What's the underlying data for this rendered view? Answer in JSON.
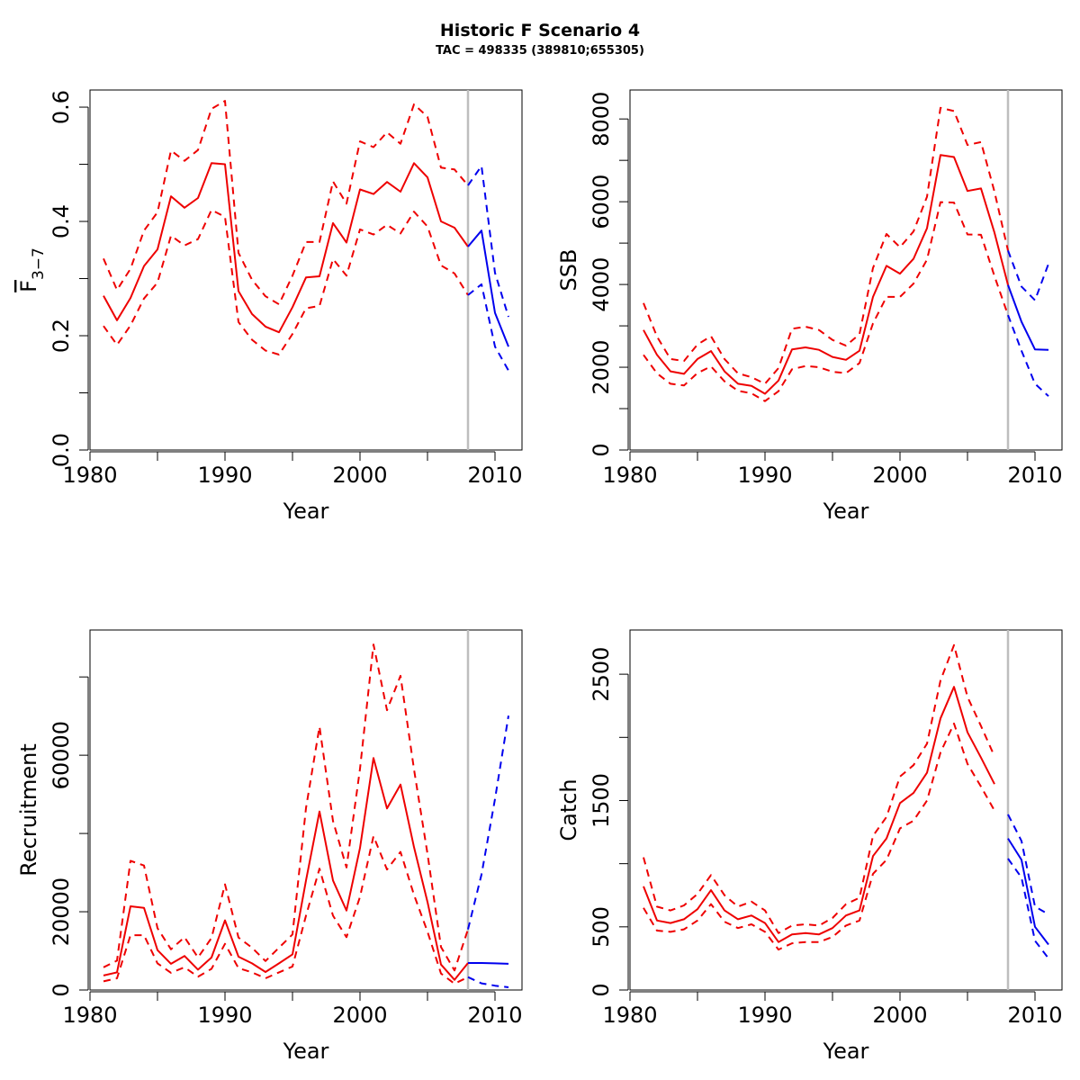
{
  "figure": {
    "title": "Historic F Scenario 4",
    "subtitle": "TAC = 498335 (389810;655305)"
  },
  "colors": {
    "historic": "#ee0000",
    "forecast": "#0000ee",
    "divider": "#bebebe"
  },
  "chart_data": [
    {
      "type": "line",
      "panel": "top-left",
      "xlabel": "Year",
      "ylabel_main": "F",
      "ylabel_sub": "3−7",
      "xlim": [
        1980,
        2012
      ],
      "ylim": [
        0,
        0.63
      ],
      "xticks": [
        1980,
        1990,
        2000,
        2010
      ],
      "yticks": [
        0.0,
        0.2,
        0.4,
        0.6
      ],
      "ytick_labels": [
        "0.0",
        "0.2",
        "0.4",
        "0.6"
      ],
      "ytick_minor": [
        0.1,
        0.3,
        0.5
      ],
      "divider_x": 2008,
      "historic": {
        "x": [
          1981,
          1982,
          1983,
          1984,
          1985,
          1986,
          1987,
          1988,
          1989,
          1990,
          1991,
          1992,
          1993,
          1994,
          1995,
          1996,
          1997,
          1998,
          1999,
          2000,
          2001,
          2002,
          2003,
          2004,
          2005,
          2006,
          2007,
          2008
        ],
        "mid": [
          0.27,
          0.227,
          0.266,
          0.322,
          0.351,
          0.444,
          0.424,
          0.441,
          0.502,
          0.5,
          0.278,
          0.238,
          0.216,
          0.206,
          0.25,
          0.302,
          0.304,
          0.397,
          0.363,
          0.456,
          0.448,
          0.469,
          0.452,
          0.502,
          0.477,
          0.4,
          0.389,
          0.356
        ],
        "upper": [
          0.335,
          0.28,
          0.317,
          0.384,
          0.416,
          0.524,
          0.506,
          0.525,
          0.597,
          0.611,
          0.345,
          0.298,
          0.269,
          0.255,
          0.305,
          0.364,
          0.364,
          0.47,
          0.431,
          0.54,
          0.53,
          0.556,
          0.536,
          0.605,
          0.583,
          0.494,
          0.491,
          0.463
        ],
        "lower": [
          0.217,
          0.184,
          0.218,
          0.265,
          0.293,
          0.375,
          0.358,
          0.369,
          0.42,
          0.408,
          0.224,
          0.193,
          0.174,
          0.167,
          0.203,
          0.248,
          0.252,
          0.334,
          0.305,
          0.386,
          0.377,
          0.394,
          0.379,
          0.417,
          0.391,
          0.323,
          0.309,
          0.271
        ]
      },
      "forecast": {
        "x": [
          2008,
          2009,
          2010,
          2011
        ],
        "mid": [
          0.356,
          0.384,
          0.24,
          0.181
        ],
        "upper": [
          0.463,
          0.497,
          0.31,
          0.233
        ],
        "lower": [
          0.271,
          0.29,
          0.181,
          0.139
        ]
      }
    },
    {
      "type": "line",
      "panel": "top-right",
      "xlabel": "Year",
      "ylabel": "SSB",
      "xlim": [
        1980,
        2012
      ],
      "ylim": [
        0,
        8700
      ],
      "xticks": [
        1980,
        1990,
        2000,
        2010
      ],
      "yticks": [
        0,
        2000,
        4000,
        6000,
        8000
      ],
      "ytick_labels": [
        "0",
        "2000",
        "4000",
        "6000",
        "8000"
      ],
      "ytick_minor": [
        1000,
        3000,
        5000,
        7000
      ],
      "divider_x": 2008,
      "historic": {
        "x": [
          1981,
          1982,
          1983,
          1984,
          1985,
          1986,
          1987,
          1988,
          1989,
          1990,
          1991,
          1992,
          1993,
          1994,
          1995,
          1996,
          1997,
          1998,
          1999,
          2000,
          2001,
          2002,
          2003,
          2004,
          2005,
          2006,
          2007,
          2008
        ],
        "mid": [
          2900,
          2300,
          1900,
          1840,
          2200,
          2390,
          1900,
          1600,
          1550,
          1360,
          1680,
          2430,
          2480,
          2420,
          2250,
          2180,
          2400,
          3700,
          4450,
          4260,
          4620,
          5360,
          7130,
          7080,
          6260,
          6320,
          5250,
          3990
        ],
        "upper": [
          3550,
          2740,
          2200,
          2150,
          2550,
          2750,
          2200,
          1850,
          1760,
          1600,
          1980,
          2930,
          2980,
          2900,
          2660,
          2520,
          2800,
          4400,
          5220,
          4900,
          5280,
          6120,
          8270,
          8190,
          7370,
          7440,
          6240,
          4820
        ],
        "lower": [
          2300,
          1850,
          1600,
          1560,
          1860,
          2020,
          1660,
          1430,
          1370,
          1180,
          1420,
          1950,
          2030,
          2000,
          1890,
          1860,
          2100,
          3060,
          3700,
          3700,
          4020,
          4600,
          5990,
          5980,
          5210,
          5200,
          4200,
          3260
        ]
      },
      "forecast": {
        "x": [
          2008,
          2009,
          2010,
          2011
        ],
        "mid": [
          3990,
          3100,
          2430,
          2420
        ],
        "upper": [
          4820,
          3950,
          3620,
          4500
        ],
        "lower": [
          3260,
          2400,
          1600,
          1300
        ]
      }
    },
    {
      "type": "line",
      "panel": "bottom-left",
      "xlabel": "Year",
      "ylabel": "Recruitment",
      "xlim": [
        1980,
        2012
      ],
      "ylim": [
        0,
        92000
      ],
      "xticks": [
        1980,
        1990,
        2000,
        2010
      ],
      "yticks": [
        0,
        20000,
        60000
      ],
      "ytick_labels": [
        "0",
        "20000",
        "60000"
      ],
      "ytick_minor": [
        40000,
        80000
      ],
      "divider_x": 2008,
      "historic": {
        "x": [
          1981,
          1982,
          1983,
          1984,
          1985,
          1986,
          1987,
          1988,
          1989,
          1990,
          1991,
          1992,
          1993,
          1994,
          1995,
          1996,
          1997,
          1998,
          1999,
          2000,
          2001,
          2002,
          2003,
          2004,
          2005,
          2006,
          2007,
          2008
        ],
        "mid": [
          3700,
          4500,
          21400,
          21000,
          10200,
          6700,
          8700,
          5200,
          8300,
          17800,
          8500,
          6800,
          4600,
          6800,
          9100,
          28000,
          45600,
          28000,
          20300,
          36300,
          59300,
          46400,
          52500,
          36500,
          22500,
          6500,
          2600,
          6900
        ],
        "upper": [
          5800,
          7500,
          33000,
          31800,
          15800,
          10400,
          13500,
          8300,
          13300,
          27000,
          13400,
          10800,
          7400,
          10800,
          14200,
          46500,
          67300,
          43200,
          31300,
          56500,
          88300,
          71500,
          80300,
          56400,
          34800,
          11000,
          5000,
          15500
        ],
        "lower": [
          2200,
          3000,
          14000,
          14000,
          6800,
          4400,
          5800,
          3400,
          5400,
          11800,
          5600,
          4500,
          3000,
          4500,
          6000,
          19000,
          31000,
          19000,
          13500,
          23800,
          39300,
          30800,
          35300,
          24300,
          14900,
          4200,
          1600,
          3300
        ]
      },
      "forecast": {
        "x": [
          2008,
          2009,
          2010,
          2011
        ],
        "mid": [
          6900,
          6900,
          6800,
          6700
        ],
        "upper": [
          15500,
          29500,
          48800,
          70100
        ],
        "lower": [
          3300,
          1700,
          1100,
          700
        ]
      }
    },
    {
      "type": "line",
      "panel": "bottom-right",
      "xlabel": "Year",
      "ylabel": "Catch",
      "xlim": [
        1980,
        2012
      ],
      "ylim": [
        0,
        2850
      ],
      "xticks": [
        1980,
        1990,
        2000,
        2010
      ],
      "yticks": [
        0,
        500,
        1500,
        2500
      ],
      "ytick_labels": [
        "0",
        "500",
        "1500",
        "2500"
      ],
      "ytick_minor": [
        1000,
        2000
      ],
      "divider_x": 2008,
      "historic": {
        "x": [
          1981,
          1982,
          1983,
          1984,
          1985,
          1986,
          1987,
          1988,
          1989,
          1990,
          1991,
          1992,
          1993,
          1994,
          1995,
          1996,
          1997,
          1998,
          1999,
          2000,
          2001,
          2002,
          2003,
          2004,
          2005,
          2006,
          2007
        ],
        "mid": [
          820,
          550,
          530,
          560,
          640,
          790,
          630,
          560,
          590,
          530,
          380,
          440,
          450,
          440,
          490,
          590,
          630,
          1060,
          1200,
          1480,
          1560,
          1720,
          2150,
          2400,
          2040,
          1840,
          1630
        ],
        "upper": [
          1050,
          660,
          630,
          670,
          760,
          910,
          750,
          660,
          700,
          630,
          450,
          510,
          520,
          510,
          570,
          680,
          730,
          1220,
          1370,
          1690,
          1780,
          1950,
          2450,
          2730,
          2320,
          2090,
          1850
        ],
        "lower": [
          650,
          470,
          460,
          480,
          550,
          680,
          540,
          490,
          520,
          460,
          320,
          370,
          380,
          380,
          420,
          510,
          550,
          920,
          1030,
          1280,
          1340,
          1500,
          1880,
          2110,
          1790,
          1610,
          1420
        ]
      },
      "forecast": {
        "x": [
          2008,
          2009,
          2010,
          2011
        ],
        "mid": [
          1200,
          1030,
          500,
          360
        ],
        "upper": [
          1390,
          1180,
          660,
          600
        ],
        "lower": [
          1040,
          890,
          390,
          250
        ]
      }
    }
  ]
}
